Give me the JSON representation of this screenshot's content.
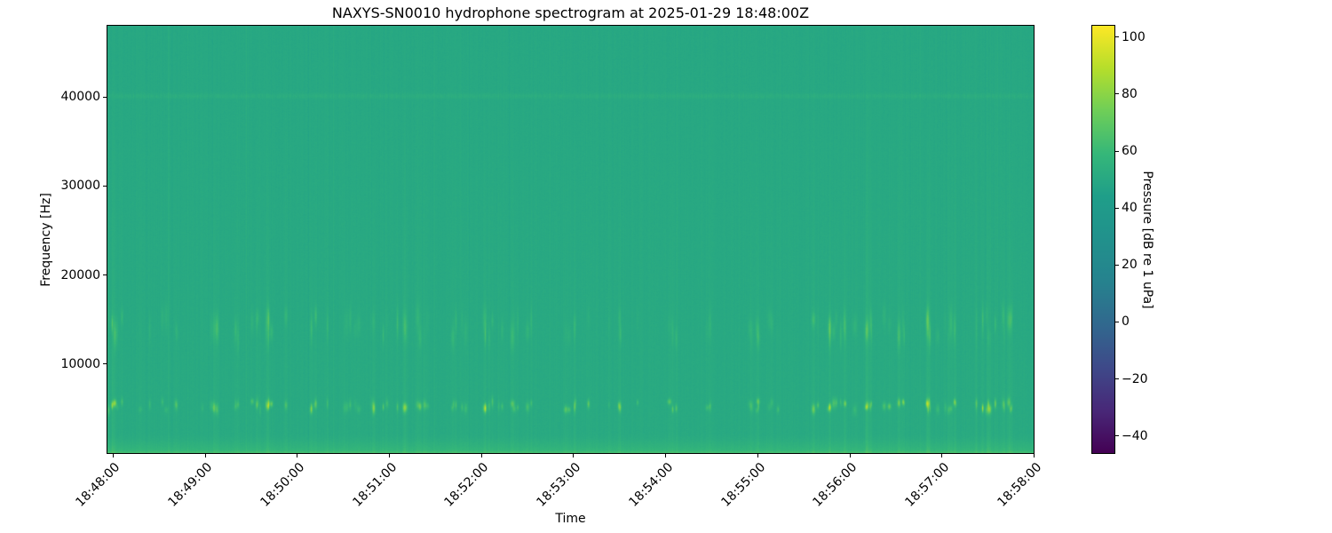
{
  "chart_data": {
    "type": "heatmap",
    "subtype": "spectrogram",
    "title": "NAXYS-SN0010 hydrophone spectrogram at 2025-01-29 18:48:00Z",
    "xlabel": "Time",
    "ylabel": "Frequency [Hz]",
    "x_tick_labels": [
      "18:48:00",
      "18:49:00",
      "18:50:00",
      "18:51:00",
      "18:52:00",
      "18:53:00",
      "18:54:00",
      "18:55:00",
      "18:56:00",
      "18:57:00",
      "18:58:00"
    ],
    "x_range": [
      "18:47:56",
      "18:58:00"
    ],
    "y_tick_values": [
      10000,
      20000,
      30000,
      40000
    ],
    "y_tick_labels": [
      "10000",
      "20000",
      "30000",
      "40000"
    ],
    "y_range_hz": [
      0,
      48000
    ],
    "colorbar": {
      "label": "Pressure [dB re 1 uPa]",
      "tick_values": [
        100,
        80,
        60,
        40,
        20,
        0,
        -20,
        -40
      ],
      "tick_labels": [
        "100",
        "80",
        "60",
        "40",
        "20",
        "0",
        "−20",
        "−40"
      ],
      "value_range_db": [
        -46,
        104
      ],
      "colormap": "viridis"
    },
    "background_level_db": 50,
    "features": [
      {
        "name": "low-frequency-band",
        "freq_hz": [
          0,
          2200
        ],
        "level_db": "55-62",
        "description": "continuous brighter green band along the bottom (lowest frequencies)"
      },
      {
        "name": "impulsive-clicks-5khz",
        "freq_hz": [
          4500,
          6500
        ],
        "peak_db": 80,
        "description": "short bright yellow-green vertical streaks around 5-6 kHz (impulsive events)"
      },
      {
        "name": "impulsive-clicks-14khz",
        "freq_hz": [
          12000,
          16000
        ],
        "peak_db": 68,
        "description": "moderate broadband streaks around 12-16 kHz aligned with the 5 kHz clicks"
      },
      {
        "name": "tone-40khz",
        "freq_hz": [
          39800,
          40400
        ],
        "level_db": 54,
        "description": "faint narrowband horizontal line near 40 kHz"
      },
      {
        "name": "broadband-columns",
        "freq_hz": [
          0,
          47000
        ],
        "level_db": "51-54",
        "description": "faint full-height vertical striping across the record"
      }
    ],
    "event_clusters": [
      {
        "t_frac": 0.01,
        "half_width": 0.01,
        "count": 5,
        "strength": 1.0
      },
      {
        "t_frac": 0.06,
        "half_width": 0.008,
        "count": 2,
        "strength": 0.35
      },
      {
        "t_frac": 0.115,
        "half_width": 0.004,
        "count": 2,
        "strength": 0.75
      },
      {
        "t_frac": 0.15,
        "half_width": 0.012,
        "count": 4,
        "strength": 0.5
      },
      {
        "t_frac": 0.19,
        "half_width": 0.018,
        "count": 6,
        "strength": 0.65
      },
      {
        "t_frac": 0.228,
        "half_width": 0.01,
        "count": 4,
        "strength": 0.85
      },
      {
        "t_frac": 0.262,
        "half_width": 0.01,
        "count": 3,
        "strength": 0.45
      },
      {
        "t_frac": 0.29,
        "half_width": 0.015,
        "count": 5,
        "strength": 0.6
      },
      {
        "t_frac": 0.33,
        "half_width": 0.018,
        "count": 6,
        "strength": 0.65
      },
      {
        "t_frac": 0.375,
        "half_width": 0.01,
        "count": 3,
        "strength": 0.5
      },
      {
        "t_frac": 0.41,
        "half_width": 0.004,
        "count": 3,
        "strength": 1.0
      },
      {
        "t_frac": 0.448,
        "half_width": 0.014,
        "count": 5,
        "strength": 0.65
      },
      {
        "t_frac": 0.505,
        "half_width": 0.016,
        "count": 6,
        "strength": 0.75
      },
      {
        "t_frac": 0.553,
        "half_width": 0.01,
        "count": 3,
        "strength": 0.55
      },
      {
        "t_frac": 0.607,
        "half_width": 0.008,
        "count": 3,
        "strength": 0.7
      },
      {
        "t_frac": 0.65,
        "half_width": 0.006,
        "count": 2,
        "strength": 0.55
      },
      {
        "t_frac": 0.707,
        "half_width": 0.014,
        "count": 5,
        "strength": 0.65
      },
      {
        "t_frac": 0.78,
        "half_width": 0.02,
        "count": 8,
        "strength": 0.85
      },
      {
        "t_frac": 0.83,
        "half_width": 0.015,
        "count": 6,
        "strength": 0.8
      },
      {
        "t_frac": 0.87,
        "half_width": 0.02,
        "count": 8,
        "strength": 0.85
      },
      {
        "t_frac": 0.905,
        "half_width": 0.012,
        "count": 4,
        "strength": 0.6
      },
      {
        "t_frac": 0.955,
        "half_width": 0.02,
        "count": 8,
        "strength": 0.95
      }
    ],
    "render": {
      "seed": 1337,
      "scattered_events": 42,
      "colormap_anchors": [
        "#440154",
        "#482878",
        "#3e4989",
        "#31688e",
        "#26828e",
        "#21918c",
        "#1f9e89",
        "#35b779",
        "#6ece58",
        "#b5de2b",
        "#fde725"
      ]
    }
  }
}
